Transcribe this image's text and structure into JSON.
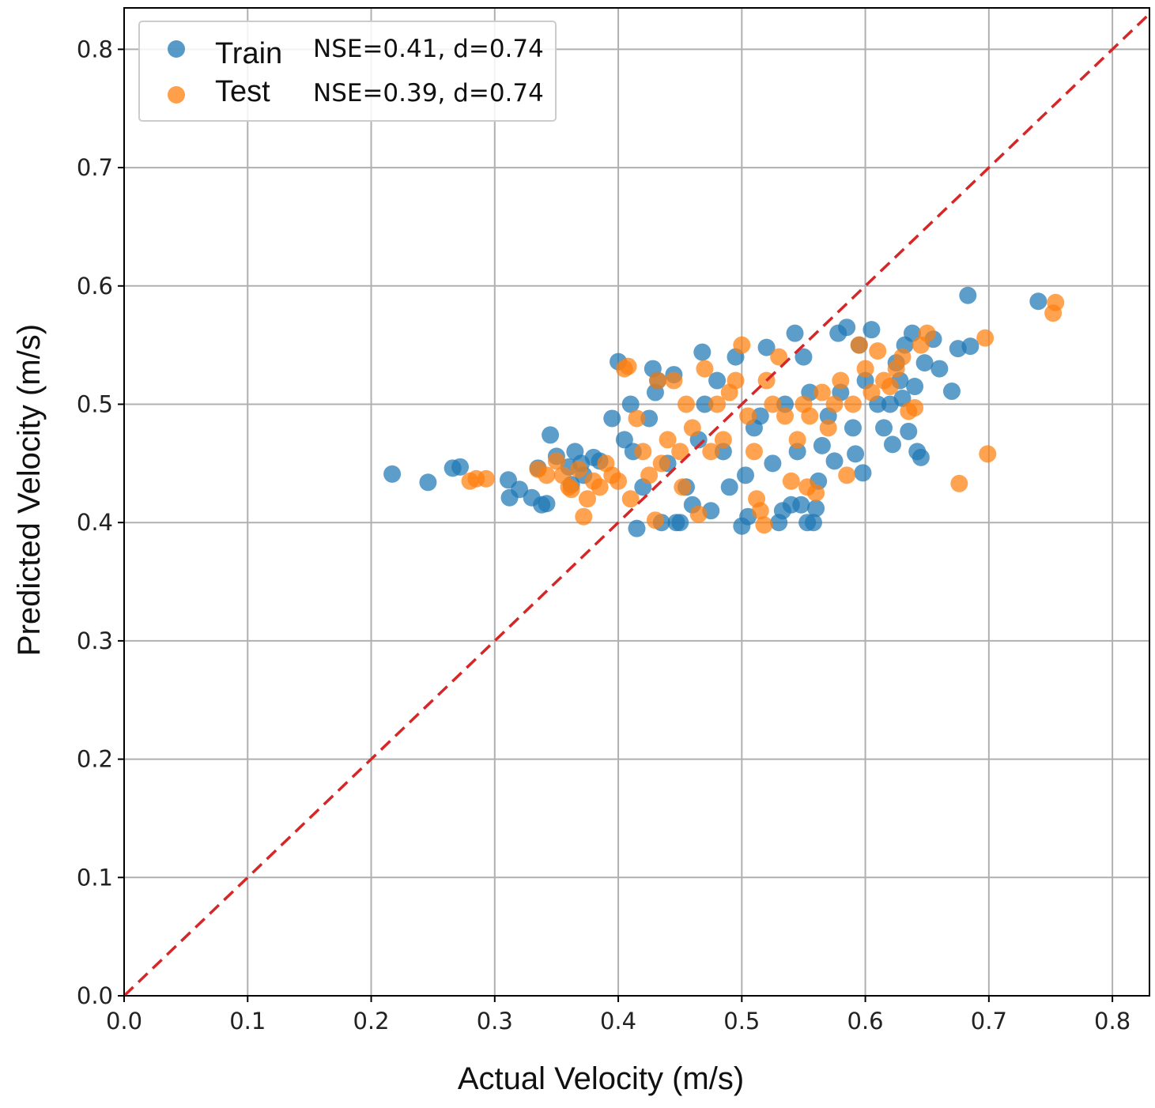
{
  "chart_data": {
    "type": "scatter",
    "xlabel": "Actual Velocity (m/s)",
    "ylabel": "Predicted Velocity (m/s)",
    "xlim": [
      0.0,
      0.83
    ],
    "ylim": [
      0.0,
      0.835
    ],
    "xticks": [
      "0.0",
      "0.1",
      "0.2",
      "0.3",
      "0.4",
      "0.5",
      "0.6",
      "0.7",
      "0.8"
    ],
    "yticks": [
      "0.0",
      "0.1",
      "0.2",
      "0.3",
      "0.4",
      "0.5",
      "0.6",
      "0.7",
      "0.8"
    ],
    "grid": true,
    "legend_position": "top-left",
    "reference_line": {
      "label": "1:1 line",
      "style": "dashed",
      "color": "#d62728",
      "from": [
        0.0,
        0.0
      ],
      "to": [
        0.83,
        0.83
      ]
    },
    "series": [
      {
        "name": "Train",
        "stat": "NSE=0.41, d=0.74",
        "color": "#1f77b4",
        "points": [
          [
            0.217,
            0.441
          ],
          [
            0.246,
            0.434
          ],
          [
            0.266,
            0.446
          ],
          [
            0.272,
            0.447
          ],
          [
            0.311,
            0.436
          ],
          [
            0.312,
            0.421
          ],
          [
            0.32,
            0.428
          ],
          [
            0.33,
            0.421
          ],
          [
            0.335,
            0.446
          ],
          [
            0.338,
            0.415
          ],
          [
            0.342,
            0.416
          ],
          [
            0.345,
            0.474
          ],
          [
            0.35,
            0.456
          ],
          [
            0.36,
            0.447
          ],
          [
            0.362,
            0.432
          ],
          [
            0.365,
            0.46
          ],
          [
            0.37,
            0.45
          ],
          [
            0.372,
            0.44
          ],
          [
            0.38,
            0.455
          ],
          [
            0.385,
            0.452
          ],
          [
            0.395,
            0.488
          ],
          [
            0.4,
            0.536
          ],
          [
            0.405,
            0.47
          ],
          [
            0.41,
            0.5
          ],
          [
            0.412,
            0.46
          ],
          [
            0.415,
            0.395
          ],
          [
            0.42,
            0.43
          ],
          [
            0.425,
            0.488
          ],
          [
            0.428,
            0.53
          ],
          [
            0.43,
            0.51
          ],
          [
            0.432,
            0.52
          ],
          [
            0.435,
            0.4
          ],
          [
            0.44,
            0.45
          ],
          [
            0.445,
            0.525
          ],
          [
            0.447,
            0.4
          ],
          [
            0.45,
            0.4
          ],
          [
            0.455,
            0.43
          ],
          [
            0.46,
            0.415
          ],
          [
            0.465,
            0.47
          ],
          [
            0.468,
            0.544
          ],
          [
            0.47,
            0.5
          ],
          [
            0.475,
            0.41
          ],
          [
            0.48,
            0.52
          ],
          [
            0.485,
            0.46
          ],
          [
            0.49,
            0.43
          ],
          [
            0.495,
            0.54
          ],
          [
            0.5,
            0.397
          ],
          [
            0.503,
            0.44
          ],
          [
            0.505,
            0.405
          ],
          [
            0.51,
            0.48
          ],
          [
            0.515,
            0.49
          ],
          [
            0.52,
            0.548
          ],
          [
            0.525,
            0.45
          ],
          [
            0.53,
            0.4
          ],
          [
            0.533,
            0.41
          ],
          [
            0.535,
            0.5
          ],
          [
            0.54,
            0.415
          ],
          [
            0.543,
            0.56
          ],
          [
            0.545,
            0.46
          ],
          [
            0.548,
            0.415
          ],
          [
            0.55,
            0.54
          ],
          [
            0.553,
            0.4
          ],
          [
            0.555,
            0.51
          ],
          [
            0.558,
            0.4
          ],
          [
            0.56,
            0.412
          ],
          [
            0.562,
            0.435
          ],
          [
            0.565,
            0.465
          ],
          [
            0.57,
            0.49
          ],
          [
            0.575,
            0.452
          ],
          [
            0.578,
            0.56
          ],
          [
            0.58,
            0.51
          ],
          [
            0.585,
            0.565
          ],
          [
            0.59,
            0.48
          ],
          [
            0.592,
            0.458
          ],
          [
            0.595,
            0.55
          ],
          [
            0.598,
            0.442
          ],
          [
            0.6,
            0.52
          ],
          [
            0.605,
            0.563
          ],
          [
            0.61,
            0.5
          ],
          [
            0.615,
            0.48
          ],
          [
            0.62,
            0.5
          ],
          [
            0.622,
            0.466
          ],
          [
            0.625,
            0.535
          ],
          [
            0.628,
            0.52
          ],
          [
            0.63,
            0.505
          ],
          [
            0.632,
            0.55
          ],
          [
            0.635,
            0.477
          ],
          [
            0.638,
            0.56
          ],
          [
            0.64,
            0.515
          ],
          [
            0.642,
            0.46
          ],
          [
            0.645,
            0.455
          ],
          [
            0.648,
            0.535
          ],
          [
            0.655,
            0.555
          ],
          [
            0.66,
            0.53
          ],
          [
            0.67,
            0.511
          ],
          [
            0.675,
            0.547
          ],
          [
            0.683,
            0.592
          ],
          [
            0.685,
            0.549
          ],
          [
            0.74,
            0.587
          ]
        ]
      },
      {
        "name": "Test",
        "stat": "NSE=0.39, d=0.74",
        "color": "#ff7f0e",
        "points": [
          [
            0.28,
            0.435
          ],
          [
            0.285,
            0.437
          ],
          [
            0.293,
            0.437
          ],
          [
            0.335,
            0.445
          ],
          [
            0.342,
            0.44
          ],
          [
            0.35,
            0.452
          ],
          [
            0.355,
            0.44
          ],
          [
            0.36,
            0.43
          ],
          [
            0.362,
            0.428
          ],
          [
            0.368,
            0.445
          ],
          [
            0.372,
            0.405
          ],
          [
            0.375,
            0.42
          ],
          [
            0.38,
            0.435
          ],
          [
            0.385,
            0.43
          ],
          [
            0.39,
            0.45
          ],
          [
            0.395,
            0.44
          ],
          [
            0.4,
            0.435
          ],
          [
            0.405,
            0.53
          ],
          [
            0.408,
            0.532
          ],
          [
            0.41,
            0.42
          ],
          [
            0.415,
            0.488
          ],
          [
            0.42,
            0.46
          ],
          [
            0.425,
            0.44
          ],
          [
            0.43,
            0.402
          ],
          [
            0.432,
            0.52
          ],
          [
            0.435,
            0.45
          ],
          [
            0.44,
            0.47
          ],
          [
            0.445,
            0.52
          ],
          [
            0.45,
            0.46
          ],
          [
            0.452,
            0.43
          ],
          [
            0.455,
            0.5
          ],
          [
            0.46,
            0.48
          ],
          [
            0.465,
            0.407
          ],
          [
            0.47,
            0.53
          ],
          [
            0.475,
            0.46
          ],
          [
            0.48,
            0.5
          ],
          [
            0.485,
            0.47
          ],
          [
            0.49,
            0.51
          ],
          [
            0.495,
            0.52
          ],
          [
            0.5,
            0.55
          ],
          [
            0.505,
            0.49
          ],
          [
            0.51,
            0.46
          ],
          [
            0.512,
            0.42
          ],
          [
            0.515,
            0.41
          ],
          [
            0.518,
            0.398
          ],
          [
            0.52,
            0.52
          ],
          [
            0.525,
            0.5
          ],
          [
            0.53,
            0.54
          ],
          [
            0.535,
            0.49
          ],
          [
            0.54,
            0.435
          ],
          [
            0.545,
            0.47
          ],
          [
            0.55,
            0.5
          ],
          [
            0.553,
            0.43
          ],
          [
            0.555,
            0.49
          ],
          [
            0.56,
            0.425
          ],
          [
            0.565,
            0.51
          ],
          [
            0.57,
            0.48
          ],
          [
            0.575,
            0.5
          ],
          [
            0.58,
            0.52
          ],
          [
            0.585,
            0.44
          ],
          [
            0.59,
            0.5
          ],
          [
            0.595,
            0.55
          ],
          [
            0.6,
            0.53
          ],
          [
            0.605,
            0.51
          ],
          [
            0.61,
            0.545
          ],
          [
            0.615,
            0.52
          ],
          [
            0.62,
            0.515
          ],
          [
            0.625,
            0.53
          ],
          [
            0.63,
            0.54
          ],
          [
            0.635,
            0.494
          ],
          [
            0.64,
            0.497
          ],
          [
            0.645,
            0.55
          ],
          [
            0.65,
            0.56
          ],
          [
            0.676,
            0.433
          ],
          [
            0.697,
            0.556
          ],
          [
            0.699,
            0.458
          ],
          [
            0.752,
            0.577
          ],
          [
            0.754,
            0.586
          ]
        ]
      }
    ]
  }
}
